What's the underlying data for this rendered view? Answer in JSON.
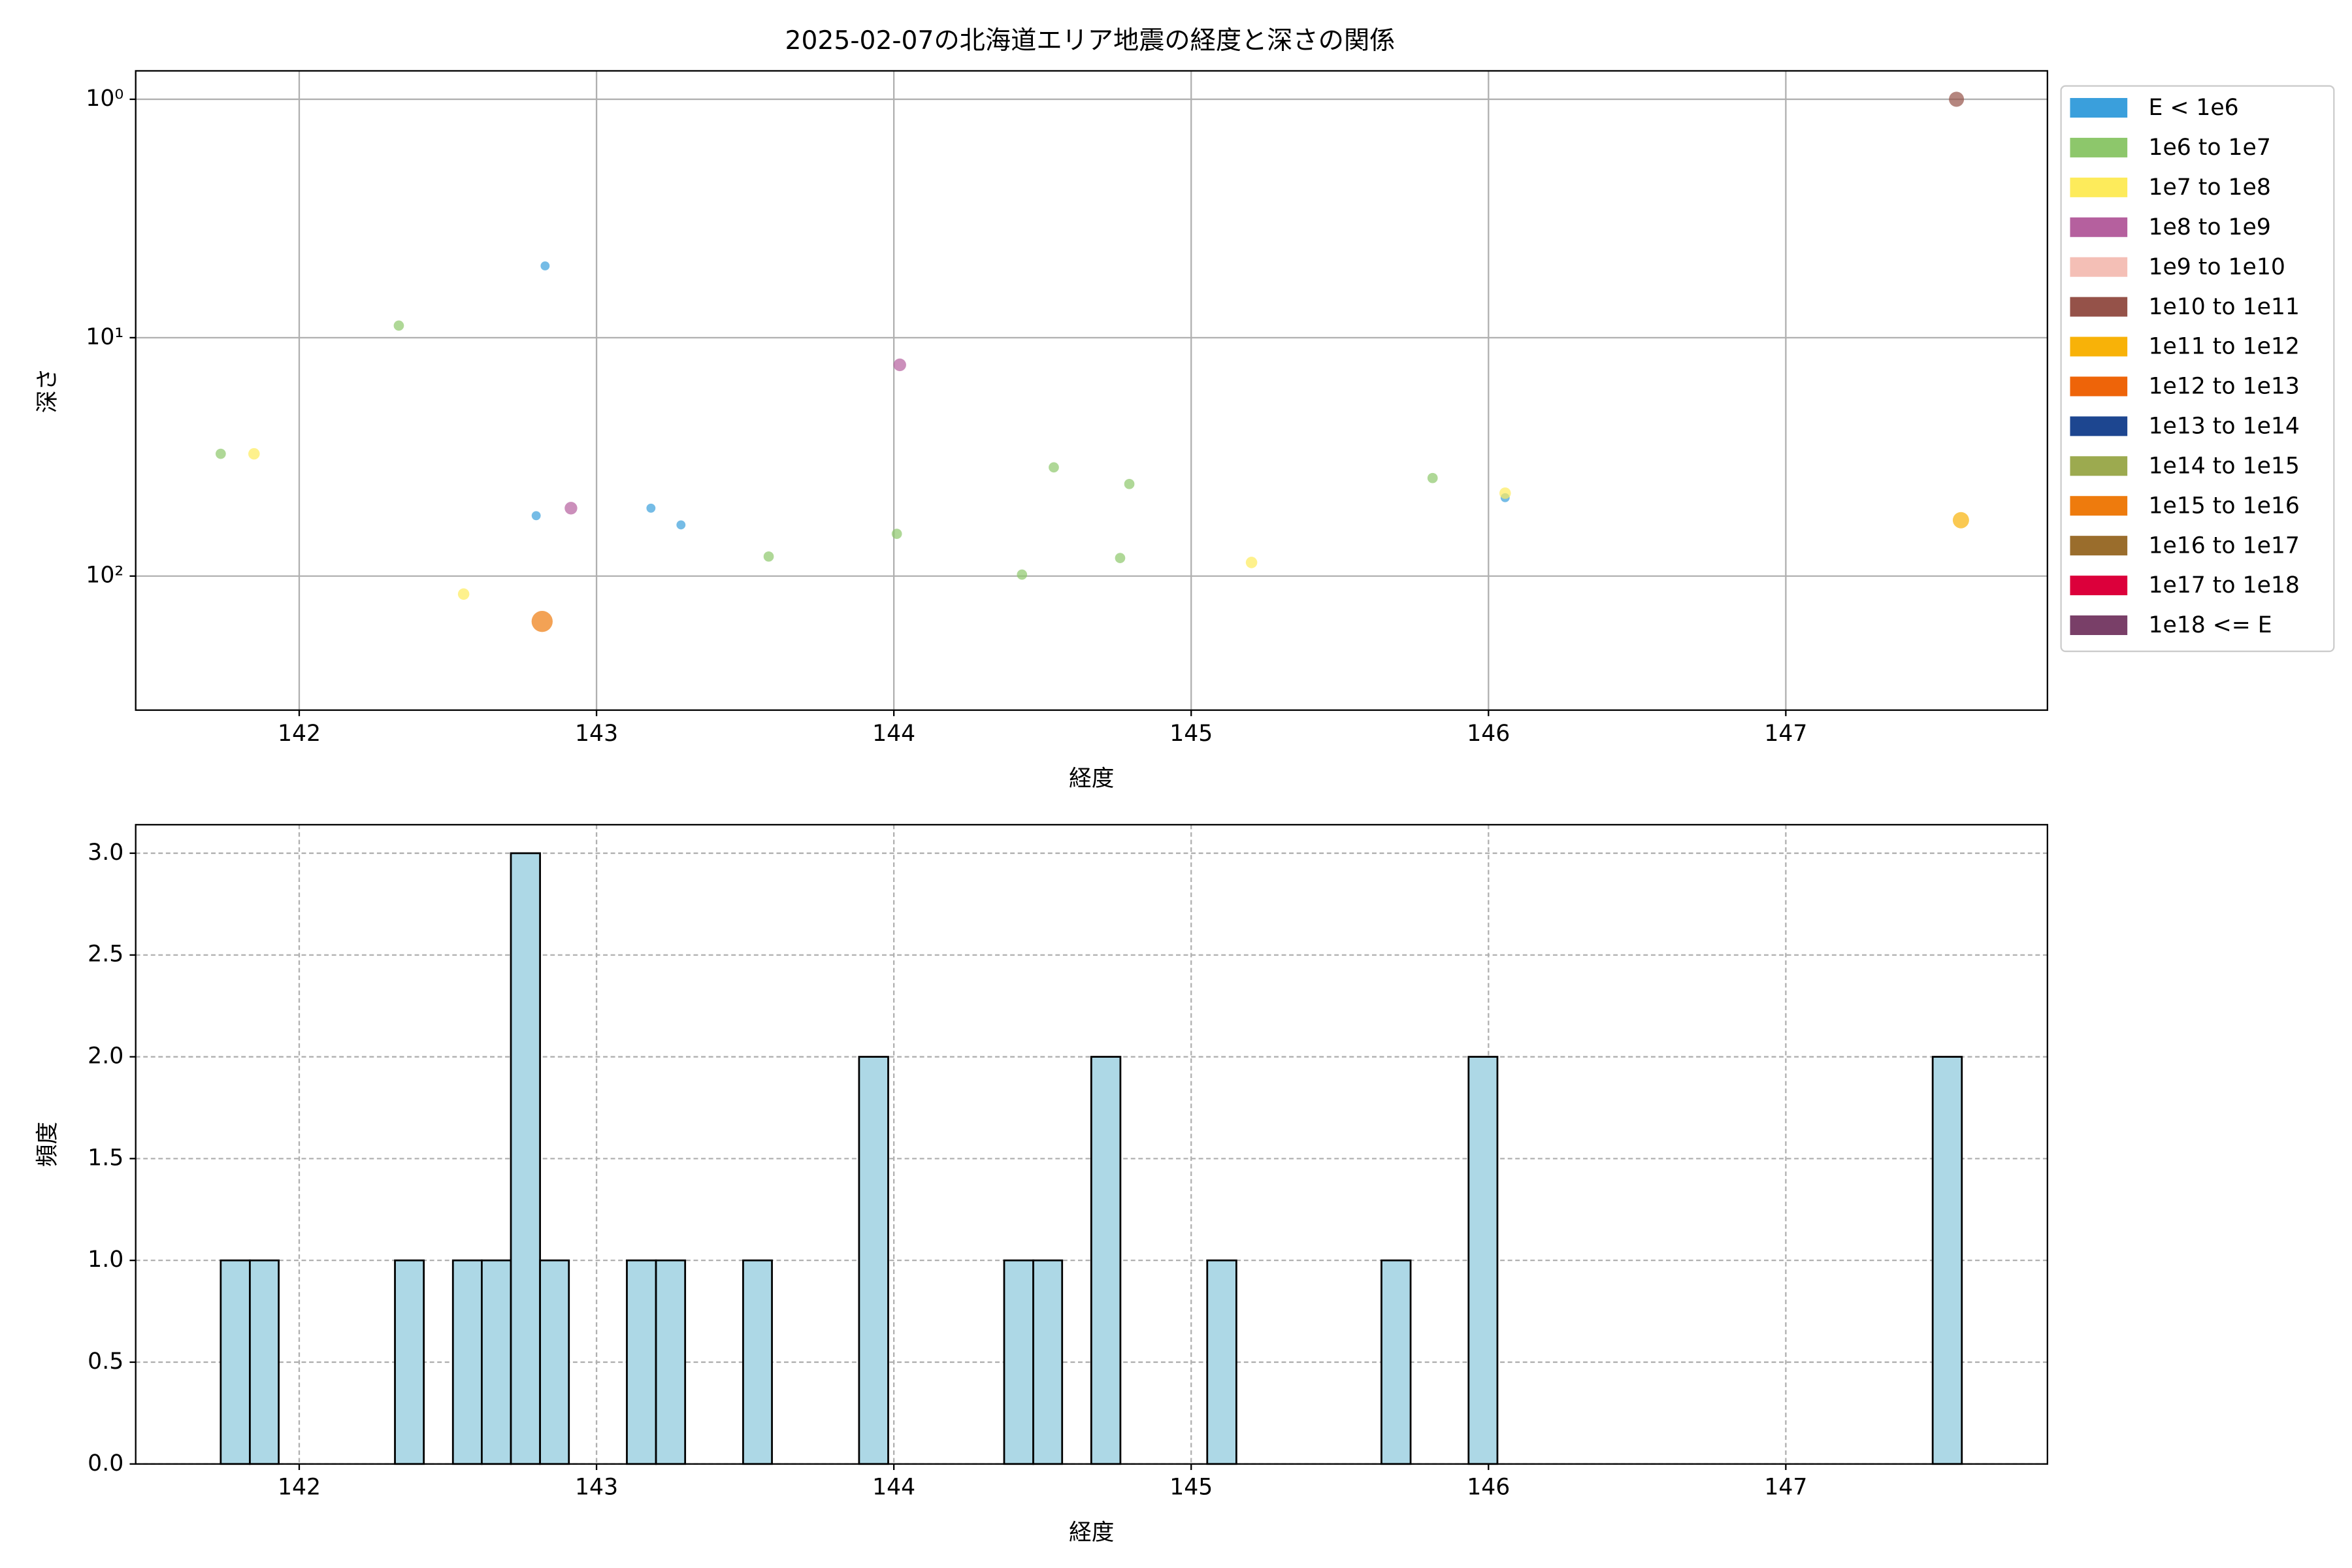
{
  "chart_data": [
    {
      "type": "scatter",
      "title": "2025-02-07の北海道エリア地震の経度と深さの関係",
      "x_label": "経度",
      "y_label": "深さ",
      "xlim": [
        141.45,
        147.88
      ],
      "xticks": [
        142,
        143,
        144,
        145,
        146,
        147
      ],
      "ylim": [
        0.76,
        365
      ],
      "y_log": true,
      "y_inverted": true,
      "yticks": [
        {
          "value": 1,
          "label": "10⁰"
        },
        {
          "value": 10,
          "label": "10¹"
        },
        {
          "value": 100,
          "label": "10²"
        }
      ],
      "grid": true,
      "legend": "outside upper right",
      "series": [
        {
          "name": "E < 1e6",
          "color": "#3a9fdc",
          "x": [
            142.797,
            142.827,
            143.183,
            143.284,
            146.056
          ],
          "values": [
            55.8,
            5.0,
            51.9,
            61,
            46.9
          ]
        },
        {
          "name": "1e6 to 1e7",
          "color": "#8dc76b",
          "x": [
            141.736,
            142.335,
            143.579,
            144.01,
            144.431,
            144.538,
            144.761,
            144.792,
            145.812
          ],
          "values": [
            30.7,
            8.9,
            82.8,
            66.5,
            98.6,
            35.0,
            84,
            41.1,
            38.8
          ]
        },
        {
          "name": "1e7 to 1e8",
          "color": "#fdeb5b",
          "x": [
            141.848,
            142.553,
            145.203,
            146.056
          ],
          "values": [
            30.7,
            119,
            87.7,
            44.9
          ]
        },
        {
          "name": "1e8 to 1e9",
          "color": "#b5609e",
          "x": [
            142.914,
            144.02
          ],
          "values": [
            51.9,
            13.0
          ]
        },
        {
          "name": "1e9 to 1e10",
          "color": "#f4bfb6",
          "x": [],
          "values": []
        },
        {
          "name": "1e10 to 1e11",
          "color": "#955249",
          "x": [
            147.574
          ],
          "values": [
            1.0
          ]
        },
        {
          "name": "1e11 to 1e12",
          "color": "#f8b208",
          "x": [
            147.589
          ],
          "values": [
            58.3
          ]
        },
        {
          "name": "1e12 to 1e13",
          "color": "#ee6409",
          "x": [],
          "values": []
        },
        {
          "name": "1e13 to 1e14",
          "color": "#1d4690",
          "x": [],
          "values": []
        },
        {
          "name": "1e14 to 1e15",
          "color": "#9caa4f",
          "x": [],
          "values": []
        },
        {
          "name": "1e15 to 1e16",
          "color": "#ee7b0d",
          "x": [
            142.817
          ],
          "values": [
            155
          ]
        },
        {
          "name": "1e16 to 1e17",
          "color": "#9a6d2c",
          "x": [],
          "values": []
        },
        {
          "name": "1e17 to 1e18",
          "color": "#dc003b",
          "x": [],
          "values": []
        },
        {
          "name": "1e18 <= E",
          "color": "#793f68",
          "x": [],
          "values": []
        }
      ]
    },
    {
      "type": "histogram",
      "x_label": "経度",
      "y_label": "頻度",
      "color": "#add8e6",
      "edgecolor": "#000000",
      "xlim": [
        141.45,
        147.88
      ],
      "xticks": [
        142,
        143,
        144,
        145,
        146,
        147
      ],
      "ylim": [
        0,
        3.14
      ],
      "yticks": [
        {
          "value": 0,
          "label": "0.0"
        },
        {
          "value": 0.5,
          "label": "0.5"
        },
        {
          "value": 1,
          "label": "1.0"
        },
        {
          "value": 1.5,
          "label": "1.5"
        },
        {
          "value": 2,
          "label": "2.0"
        },
        {
          "value": 2.5,
          "label": "2.5"
        },
        {
          "value": 3,
          "label": "3.0"
        }
      ],
      "grid": true,
      "bins": [
        141.736,
        141.834,
        141.931,
        142.029,
        142.126,
        142.224,
        142.322,
        142.419,
        142.517,
        142.614,
        142.712,
        142.81,
        142.907,
        143.005,
        143.102,
        143.2,
        143.298,
        143.395,
        143.493,
        143.59,
        143.688,
        143.786,
        143.883,
        143.981,
        144.078,
        144.176,
        144.274,
        144.371,
        144.469,
        144.566,
        144.664,
        144.762,
        144.859,
        144.957,
        145.054,
        145.152,
        145.25,
        145.347,
        145.445,
        145.542,
        145.64,
        145.738,
        145.835,
        145.933,
        146.03,
        146.128,
        146.226,
        146.323,
        146.421,
        146.518,
        146.616,
        146.714,
        146.811,
        146.909,
        147.006,
        147.104,
        147.202,
        147.299,
        147.397,
        147.494,
        147.592
      ],
      "values": [
        1,
        1,
        0,
        0,
        0,
        0,
        1,
        0,
        1,
        1,
        3,
        1,
        0,
        0,
        1,
        1,
        0,
        0,
        1,
        0,
        0,
        0,
        2,
        0,
        0,
        0,
        0,
        1,
        1,
        0,
        2,
        0,
        0,
        0,
        1,
        0,
        0,
        0,
        0,
        0,
        1,
        0,
        0,
        2,
        0,
        0,
        0,
        0,
        0,
        0,
        0,
        0,
        0,
        0,
        0,
        0,
        0,
        0,
        0,
        2
      ]
    }
  ]
}
